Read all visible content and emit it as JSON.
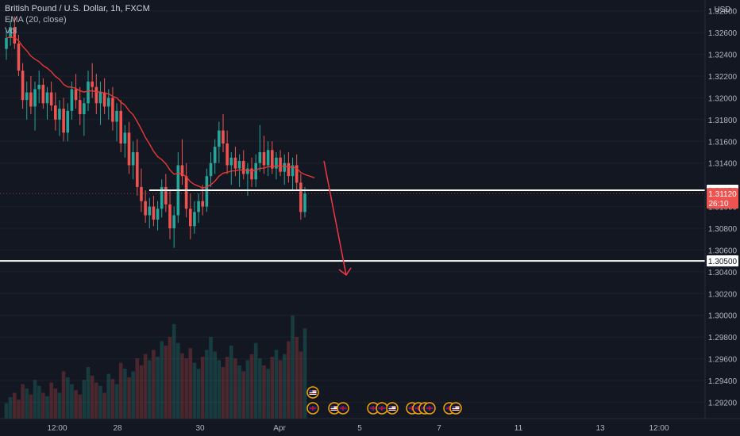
{
  "header": {
    "symbol": "British Pound / U.S. Dollar, 1h, FXCM",
    "indicator": "EMA (20, close)",
    "volume": "Vol"
  },
  "chart_data": {
    "type": "candlestick",
    "currency": "USD",
    "price_ticks": [
      "1.32800",
      "1.32600",
      "1.32400",
      "1.32200",
      "1.32000",
      "1.31800",
      "1.31600",
      "1.31400",
      "1.31000",
      "1.30800",
      "1.30600",
      "1.30400",
      "1.30200",
      "1.30000",
      "1.29800",
      "1.29600",
      "1.29400",
      "1.29200"
    ],
    "time_ticks": [
      "12:00",
      "28",
      "30",
      "Apr",
      "5",
      "7",
      "11",
      "13",
      "12:00"
    ],
    "ylim": [
      1.2905,
      1.329
    ],
    "horizontal_levels": [
      {
        "price": 1.3115,
        "label": "1.31150"
      },
      {
        "price": 1.305,
        "label": "1.30500"
      }
    ],
    "last_price": {
      "price": 1.3112,
      "label": "1.31120",
      "countdown": "26:10"
    },
    "projection_arrow": {
      "from_price": 1.3142,
      "to_price": 1.3037
    },
    "candles_ohlc": [
      [
        1.3245,
        1.3262,
        1.3235,
        1.3255
      ],
      [
        1.3255,
        1.3272,
        1.3248,
        1.3265
      ],
      [
        1.3265,
        1.3275,
        1.3245,
        1.325
      ],
      [
        1.325,
        1.3258,
        1.322,
        1.3225
      ],
      [
        1.3225,
        1.3232,
        1.319,
        1.3198
      ],
      [
        1.3198,
        1.3215,
        1.318,
        1.3205
      ],
      [
        1.3205,
        1.322,
        1.3185,
        1.3192
      ],
      [
        1.3192,
        1.3215,
        1.317,
        1.3208
      ],
      [
        1.3208,
        1.3225,
        1.3195,
        1.3212
      ],
      [
        1.3212,
        1.3218,
        1.319,
        1.3195
      ],
      [
        1.3195,
        1.321,
        1.318,
        1.3205
      ],
      [
        1.3205,
        1.3215,
        1.3188,
        1.3193
      ],
      [
        1.3193,
        1.3205,
        1.317,
        1.318
      ],
      [
        1.318,
        1.3198,
        1.3165,
        1.319
      ],
      [
        1.319,
        1.32,
        1.316,
        1.3168
      ],
      [
        1.3168,
        1.3195,
        1.316,
        1.3188
      ],
      [
        1.3188,
        1.3215,
        1.318,
        1.3208
      ],
      [
        1.3208,
        1.3222,
        1.319,
        1.3198
      ],
      [
        1.3198,
        1.321,
        1.3175,
        1.3185
      ],
      [
        1.3185,
        1.32,
        1.3165,
        1.3195
      ],
      [
        1.3195,
        1.3225,
        1.3188,
        1.3215
      ],
      [
        1.3215,
        1.3232,
        1.32,
        1.321
      ],
      [
        1.321,
        1.3222,
        1.3185,
        1.3195
      ],
      [
        1.3195,
        1.3215,
        1.3175,
        1.3205
      ],
      [
        1.3205,
        1.3218,
        1.3185,
        1.3192
      ],
      [
        1.3192,
        1.3208,
        1.318,
        1.32
      ],
      [
        1.32,
        1.321,
        1.317,
        1.3178
      ],
      [
        1.3178,
        1.3195,
        1.316,
        1.3188
      ],
      [
        1.3188,
        1.3198,
        1.315,
        1.3158
      ],
      [
        1.3158,
        1.3175,
        1.3145,
        1.3168
      ],
      [
        1.3168,
        1.3178,
        1.313,
        1.3138
      ],
      [
        1.3138,
        1.316,
        1.3125,
        1.315
      ],
      [
        1.315,
        1.3162,
        1.311,
        1.3118
      ],
      [
        1.3118,
        1.3135,
        1.3095,
        1.3105
      ],
      [
        1.3105,
        1.3115,
        1.3085,
        1.3092
      ],
      [
        1.3092,
        1.3108,
        1.308,
        1.31
      ],
      [
        1.31,
        1.311,
        1.3082,
        1.3088
      ],
      [
        1.3088,
        1.3105,
        1.3078,
        1.3098
      ],
      [
        1.3098,
        1.3125,
        1.309,
        1.3118
      ],
      [
        1.3118,
        1.313,
        1.3095,
        1.3102
      ],
      [
        1.3102,
        1.3115,
        1.307,
        1.308
      ],
      [
        1.308,
        1.31,
        1.3062,
        1.3092
      ],
      [
        1.3092,
        1.315,
        1.3085,
        1.3138
      ],
      [
        1.3138,
        1.3162,
        1.312,
        1.3128
      ],
      [
        1.3128,
        1.314,
        1.309,
        1.3098
      ],
      [
        1.3098,
        1.3112,
        1.307,
        1.3082
      ],
      [
        1.3082,
        1.3105,
        1.3075,
        1.3095
      ],
      [
        1.3095,
        1.3112,
        1.3085,
        1.3105
      ],
      [
        1.3105,
        1.312,
        1.3092,
        1.31
      ],
      [
        1.31,
        1.3135,
        1.3095,
        1.3128
      ],
      [
        1.3128,
        1.315,
        1.3118,
        1.314
      ],
      [
        1.314,
        1.3162,
        1.313,
        1.3155
      ],
      [
        1.3155,
        1.3178,
        1.314,
        1.317
      ],
      [
        1.317,
        1.3185,
        1.315,
        1.3158
      ],
      [
        1.3158,
        1.317,
        1.313,
        1.3138
      ],
      [
        1.3138,
        1.315,
        1.312,
        1.3145
      ],
      [
        1.3145,
        1.3155,
        1.3128,
        1.3135
      ],
      [
        1.3135,
        1.3148,
        1.3118,
        1.3142
      ],
      [
        1.3142,
        1.3152,
        1.3125,
        1.313
      ],
      [
        1.313,
        1.314,
        1.311,
        1.3135
      ],
      [
        1.3135,
        1.3145,
        1.3118,
        1.3125
      ],
      [
        1.3125,
        1.3148,
        1.3118,
        1.314
      ],
      [
        1.314,
        1.3175,
        1.3132,
        1.315
      ],
      [
        1.315,
        1.3165,
        1.313,
        1.3138
      ],
      [
        1.3138,
        1.316,
        1.3128,
        1.3152
      ],
      [
        1.3152,
        1.316,
        1.313,
        1.3135
      ],
      [
        1.3135,
        1.315,
        1.3125,
        1.3145
      ],
      [
        1.3145,
        1.3152,
        1.3128,
        1.3132
      ],
      [
        1.3132,
        1.3148,
        1.312,
        1.314
      ],
      [
        1.314,
        1.315,
        1.3122,
        1.3128
      ],
      [
        1.3128,
        1.3145,
        1.3115,
        1.3138
      ],
      [
        1.3138,
        1.3148,
        1.3115,
        1.3122
      ],
      [
        1.3122,
        1.313,
        1.3088,
        1.3095
      ],
      [
        1.3095,
        1.3118,
        1.309,
        1.3112
      ]
    ],
    "volumes": [
      18,
      25,
      30,
      22,
      40,
      35,
      28,
      45,
      38,
      30,
      26,
      42,
      35,
      30,
      55,
      48,
      40,
      33,
      28,
      45,
      60,
      50,
      42,
      38,
      30,
      52,
      46,
      40,
      65,
      58,
      48,
      55,
      70,
      62,
      75,
      68,
      80,
      72,
      90,
      85,
      95,
      110,
      88,
      76,
      70,
      82,
      65,
      58,
      72,
      80,
      95,
      78,
      68,
      60,
      72,
      85,
      70,
      62,
      55,
      68,
      75,
      88,
      70,
      62,
      58,
      72,
      80,
      68,
      75,
      90,
      120,
      95,
      78,
      105
    ]
  },
  "calendar_events": [
    {
      "flag": "us-flag"
    },
    {
      "flag": "gb-flag"
    },
    {
      "flag": "us-flag"
    },
    {
      "flag": "gb-flag"
    },
    {
      "flag": "gb-flag"
    },
    {
      "flag": "gb-flag"
    },
    {
      "flag": "us-flag"
    },
    {
      "flag": "gb-flag"
    },
    {
      "flag": "gb-flag"
    },
    {
      "flag": "gb-flag"
    },
    {
      "flag": "gb-flag"
    },
    {
      "flag": "gb-flag"
    },
    {
      "flag": "us-flag"
    }
  ],
  "colors": {
    "background": "#131722",
    "up": "#26a69a",
    "down": "#ef5350",
    "ema": "#e53935",
    "grid": "#1e222d",
    "level": "#ffffff",
    "arrow": "#f23645"
  }
}
